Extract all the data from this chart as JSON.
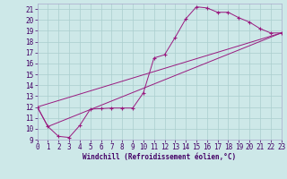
{
  "xlabel": "Windchill (Refroidissement éolien,°C)",
  "bg_color": "#cde8e8",
  "grid_color": "#aacece",
  "line_color": "#99197f",
  "xlim": [
    0,
    23
  ],
  "ylim": [
    9,
    21.5
  ],
  "xticks": [
    0,
    1,
    2,
    3,
    4,
    5,
    6,
    7,
    8,
    9,
    10,
    11,
    12,
    13,
    14,
    15,
    16,
    17,
    18,
    19,
    20,
    21,
    22,
    23
  ],
  "yticks": [
    9,
    10,
    11,
    12,
    13,
    14,
    15,
    16,
    17,
    18,
    19,
    20,
    21
  ],
  "curve_x": [
    0,
    1,
    2,
    3,
    4,
    5,
    6,
    7,
    8,
    9,
    10,
    11,
    12,
    13,
    14,
    15,
    16,
    17,
    18,
    19,
    20,
    21,
    22,
    23
  ],
  "curve_y": [
    12.0,
    10.2,
    9.3,
    9.2,
    10.3,
    11.8,
    11.85,
    11.9,
    11.9,
    11.9,
    13.3,
    16.5,
    16.8,
    18.4,
    20.1,
    21.2,
    21.1,
    20.7,
    20.7,
    20.2,
    19.8,
    19.2,
    18.8,
    18.8
  ],
  "line1_x": [
    0,
    23
  ],
  "line1_y": [
    12.0,
    18.8
  ],
  "line2_x": [
    0,
    1,
    23
  ],
  "line2_y": [
    12.0,
    10.2,
    18.8
  ],
  "tick_fontsize": 5.5,
  "xlabel_fontsize": 5.5,
  "marker_size": 2.2,
  "lw": 0.7
}
